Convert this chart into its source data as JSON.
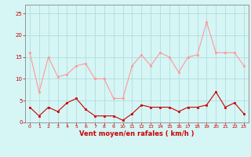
{
  "x": [
    0,
    1,
    2,
    3,
    4,
    5,
    6,
    7,
    8,
    9,
    10,
    11,
    12,
    13,
    14,
    15,
    16,
    17,
    18,
    19,
    20,
    21,
    22,
    23
  ],
  "rafales": [
    16,
    7,
    15,
    10.5,
    11,
    13,
    13.5,
    10,
    10,
    5.5,
    5.5,
    13,
    15.5,
    13,
    16,
    15,
    11.5,
    15,
    15.5,
    23,
    16,
    16,
    16,
    13
  ],
  "vent_moyen": [
    3.5,
    1.5,
    3.5,
    2.5,
    4.5,
    5.5,
    3,
    1.5,
    1.5,
    1.5,
    0.5,
    2,
    4,
    3.5,
    3.5,
    3.5,
    2.5,
    3.5,
    3.5,
    4,
    7,
    3.5,
    4.5,
    2
  ],
  "rafales_color": "#ff9999",
  "vent_moyen_color": "#cc0000",
  "bg_color": "#d6f5f5",
  "grid_color": "#b0dede",
  "axis_color": "#cc0000",
  "spine_color": "#888888",
  "xlabel": "Vent moyen/en rafales ( km/h )",
  "xlabel_color": "#cc0000",
  "ylim": [
    0,
    27
  ],
  "yticks": [
    0,
    5,
    10,
    15,
    20,
    25
  ],
  "xticks": [
    0,
    1,
    2,
    3,
    4,
    5,
    6,
    7,
    8,
    9,
    10,
    11,
    12,
    13,
    14,
    15,
    16,
    17,
    18,
    19,
    20,
    21,
    22,
    23
  ]
}
